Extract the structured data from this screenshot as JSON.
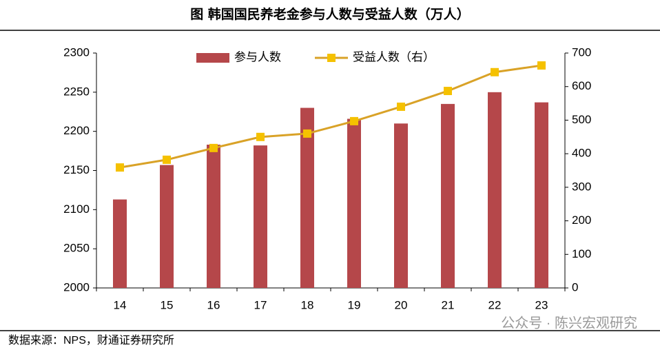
{
  "chart_data": {
    "type": "bar",
    "title": "图  韩国国民养老金参与人数与受益人数（万人）",
    "categories": [
      "14",
      "15",
      "16",
      "17",
      "18",
      "19",
      "20",
      "21",
      "22",
      "23"
    ],
    "series": [
      {
        "name": "参与人数",
        "color": "#b5474a",
        "values": [
          2113,
          2157,
          2183,
          2182,
          2230,
          2216,
          2210,
          2235,
          2250,
          2237
        ]
      },
      {
        "name": "受益人数（右）",
        "type": "line",
        "axis": "y2",
        "color": "#d9a227",
        "marker_color": "#f5c100",
        "values": [
          359,
          382,
          417,
          450,
          460,
          497,
          540,
          587,
          643,
          663
        ]
      }
    ],
    "ylim": [
      2000,
      2300
    ],
    "yticks": [
      2000,
      2050,
      2100,
      2150,
      2200,
      2250,
      2300
    ],
    "y2lim": [
      0,
      700
    ],
    "y2ticks": [
      0,
      100,
      200,
      300,
      400,
      500,
      600,
      700
    ],
    "legend": "top",
    "source": "数据来源：NPS，财通证券研究所",
    "watermark": "公众号 · 陈兴宏观研究"
  }
}
